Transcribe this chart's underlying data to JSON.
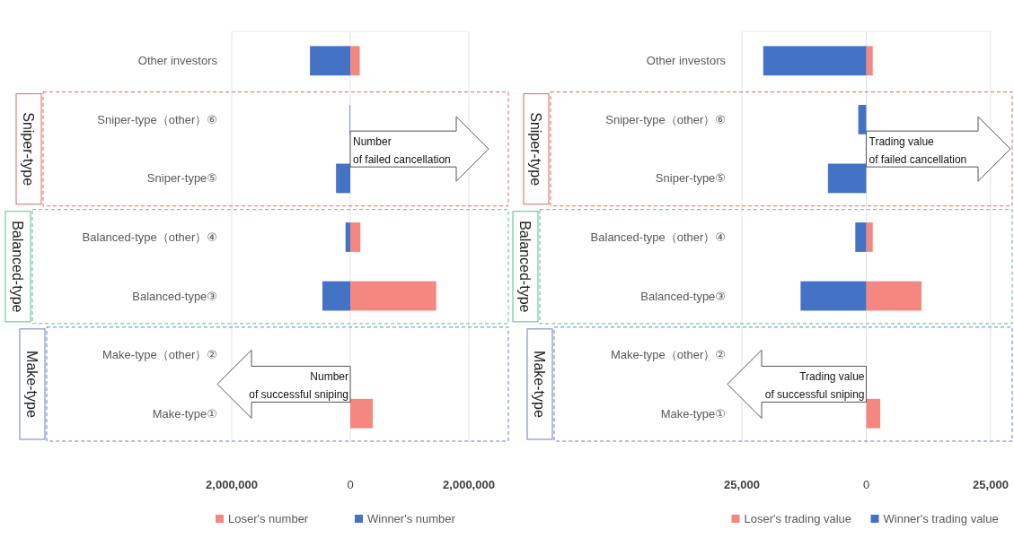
{
  "chart_data": [
    {
      "type": "bar",
      "orientation": "horizontal",
      "categories": [
        "Other investors",
        "Sniper-type（other）⑥",
        "Sniper-type⑤",
        "Balanced-type（other）④",
        "Balanced-type③",
        "Make-type（other）②",
        "Make-type①"
      ],
      "series": [
        {
          "name": "Loser's number",
          "color": "#f4877f",
          "values": [
            160000,
            0,
            0,
            170000,
            1450000,
            0,
            380000
          ]
        },
        {
          "name": "Winner's number",
          "color": "#4472c4",
          "values": [
            -680000,
            -10000,
            -240000,
            -80000,
            -470000,
            0,
            0
          ]
        }
      ],
      "xlim": [
        -2000000,
        2000000
      ],
      "xticks": [
        {
          "value": -2000000,
          "label": "2,000,000"
        },
        0,
        {
          "value": 2000000,
          "label": "2,000,000"
        }
      ],
      "grid": "x",
      "legend": "bottom",
      "annotations": [
        "Sniper-type",
        "Balanced-type",
        "Make-type",
        "Number\nof failed cancellation",
        "Number\nof successful sniping"
      ]
    },
    {
      "type": "bar",
      "orientation": "horizontal",
      "categories": [
        "Other investors",
        "Sniper-type（other）⑥",
        "Sniper-type⑤",
        "Balanced-type（other）④",
        "Balanced-type③",
        "Make-type（other）②",
        "Make-type①"
      ],
      "series": [
        {
          "name": "Loser's trading value",
          "color": "#f4877f",
          "values": [
            1300,
            0,
            0,
            1300,
            11100,
            0,
            2800
          ]
        },
        {
          "name": "Winner's trading value",
          "color": "#4472c4",
          "values": [
            -20700,
            -1600,
            -7700,
            -2200,
            -13200,
            0,
            0
          ]
        }
      ],
      "xlim": [
        -25000,
        25000
      ],
      "xticks": [
        {
          "value": -25000,
          "label": "25,000"
        },
        0,
        {
          "value": 25000,
          "label": "25,000"
        }
      ],
      "grid": "x",
      "legend": "bottom",
      "annotations": [
        "Sniper-type",
        "Balanced-type",
        "Make-type",
        "Trading value\nof failed cancellation",
        "Trading value\nof successful sniping"
      ]
    }
  ]
}
